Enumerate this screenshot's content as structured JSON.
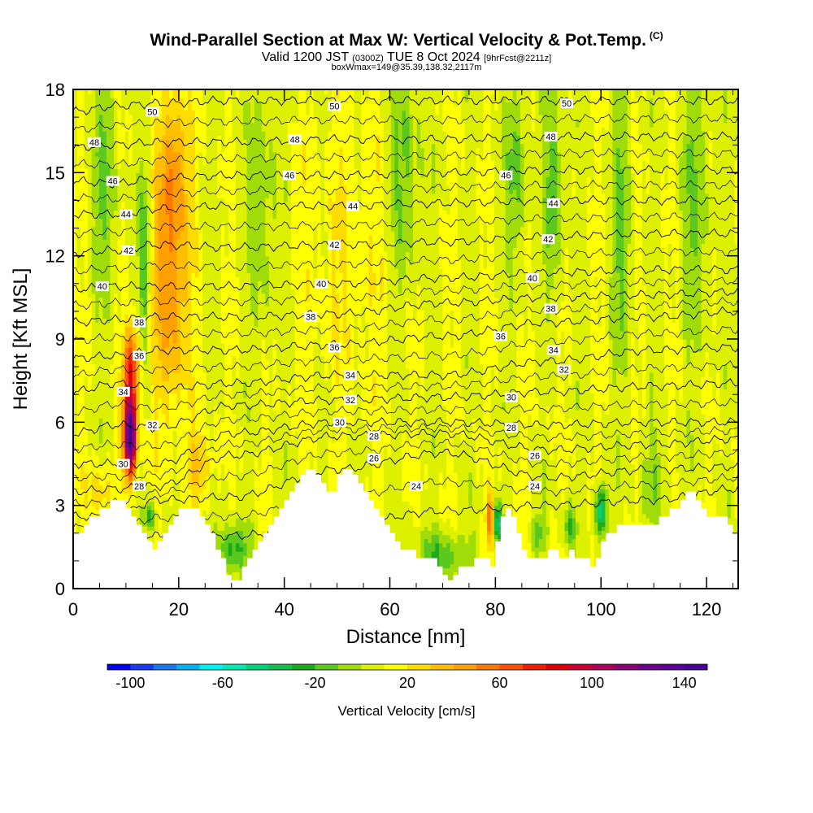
{
  "title": {
    "main": "Wind-Parallel Section at Max W: Vertical Velocity & Pot.Temp.",
    "copyright": "(C)",
    "valid_prefix": "Valid 1200 JST",
    "valid_utc": "(0300Z)",
    "valid_date": "TUE 8 Oct 2024",
    "forecast": "[9hrFcst@2211z]",
    "box": "boxWmax=149@35.39,138.32,2117m"
  },
  "chart_data": {
    "type": "heatmap",
    "xlabel": "Distance [nm]",
    "ylabel": "Height [Kft MSL]",
    "xlim": [
      0,
      126
    ],
    "ylim": [
      0,
      18
    ],
    "x_ticks": [
      0,
      20,
      40,
      60,
      80,
      100,
      120
    ],
    "y_ticks": [
      0,
      3,
      6,
      9,
      12,
      15,
      18
    ],
    "colorbar": {
      "label": "Vertical Velocity [cm/s]",
      "min": -110,
      "max": 150,
      "step": 10,
      "ticks": [
        -100,
        -60,
        -20,
        20,
        60,
        100,
        140
      ],
      "colors": [
        "#0000ee",
        "#1a3cf0",
        "#1c78f0",
        "#00b0f0",
        "#00f0f0",
        "#00e6b4",
        "#00d27a",
        "#14be4a",
        "#1aaa1a",
        "#5ac81e",
        "#a0dc0a",
        "#dcf000",
        "#ffff00",
        "#ffdc00",
        "#ffbe00",
        "#ffa000",
        "#ff7800",
        "#ff5000",
        "#f01e00",
        "#dc0000",
        "#c80032",
        "#aa005a",
        "#8c0078",
        "#6e0090",
        "#5a0096",
        "#460096"
      ]
    },
    "terrain_heights_kft": [
      [
        0,
        2
      ],
      [
        1,
        2
      ],
      [
        2,
        2.3
      ],
      [
        3,
        2.6
      ],
      [
        4,
        2.6
      ],
      [
        5,
        2.9
      ],
      [
        6,
        2.9
      ],
      [
        7,
        3.2
      ],
      [
        8,
        3.2
      ],
      [
        9,
        3.2
      ],
      [
        10,
        2.9
      ],
      [
        11,
        2.6
      ],
      [
        12,
        2.3
      ],
      [
        13,
        2
      ],
      [
        14,
        1.7
      ],
      [
        15,
        1.4
      ],
      [
        16,
        1.7
      ],
      [
        17,
        2
      ],
      [
        18,
        2.3
      ],
      [
        19,
        2.6
      ],
      [
        20,
        2.9
      ],
      [
        21,
        2.9
      ],
      [
        22,
        2.9
      ],
      [
        23,
        2.9
      ],
      [
        24,
        2.6
      ],
      [
        25,
        2.3
      ],
      [
        26,
        2
      ],
      [
        27,
        1.4
      ],
      [
        28,
        1.1
      ],
      [
        29,
        0.5
      ],
      [
        30,
        0.3
      ],
      [
        31,
        0.3
      ],
      [
        32,
        0.8
      ],
      [
        33,
        1.1
      ],
      [
        34,
        1.4
      ],
      [
        35,
        1.7
      ],
      [
        36,
        2
      ],
      [
        37,
        2.3
      ],
      [
        38,
        2.6
      ],
      [
        39,
        2.9
      ],
      [
        40,
        3.2
      ],
      [
        41,
        3.5
      ],
      [
        42,
        3.8
      ],
      [
        43,
        4.1
      ],
      [
        44,
        4.3
      ],
      [
        45,
        4.3
      ],
      [
        46,
        4.1
      ],
      [
        47,
        3.8
      ],
      [
        48,
        3.5
      ],
      [
        49,
        3.5
      ],
      [
        50,
        4.1
      ],
      [
        51,
        4.3
      ],
      [
        52,
        4.3
      ],
      [
        53,
        4.1
      ],
      [
        54,
        3.8
      ],
      [
        55,
        3.5
      ],
      [
        56,
        3.2
      ],
      [
        57,
        2.9
      ],
      [
        58,
        2.6
      ],
      [
        59,
        2.3
      ],
      [
        60,
        2
      ],
      [
        61,
        1.7
      ],
      [
        62,
        1.4
      ],
      [
        63,
        1.4
      ],
      [
        64,
        1.4
      ],
      [
        65,
        1.1
      ],
      [
        66,
        1.1
      ],
      [
        67,
        1.1
      ],
      [
        68,
        1.1
      ],
      [
        69,
        0.8
      ],
      [
        70,
        0.5
      ],
      [
        71,
        0.3
      ],
      [
        72,
        0.5
      ],
      [
        73,
        0.8
      ],
      [
        74,
        0.8
      ],
      [
        75,
        0.8
      ],
      [
        76,
        1.1
      ],
      [
        77,
        1.1
      ],
      [
        78,
        1.1
      ],
      [
        79,
        0.8
      ],
      [
        80,
        1.7
      ],
      [
        81,
        2.6
      ],
      [
        82,
        2.9
      ],
      [
        83,
        2.6
      ],
      [
        84,
        2
      ],
      [
        85,
        1.4
      ],
      [
        86,
        1.1
      ],
      [
        87,
        1.1
      ],
      [
        88,
        1.1
      ],
      [
        89,
        1.1
      ],
      [
        90,
        1.4
      ],
      [
        91,
        1.4
      ],
      [
        92,
        1.1
      ],
      [
        93,
        1.1
      ],
      [
        94,
        1.4
      ],
      [
        95,
        1.1
      ],
      [
        96,
        1.1
      ],
      [
        97,
        1.1
      ],
      [
        98,
        0.8
      ],
      [
        99,
        1.1
      ],
      [
        100,
        1.7
      ],
      [
        101,
        2
      ],
      [
        102,
        2
      ],
      [
        103,
        2.3
      ],
      [
        104,
        2.3
      ],
      [
        105,
        2.3
      ],
      [
        106,
        2.3
      ],
      [
        107,
        2.3
      ],
      [
        108,
        2.3
      ],
      [
        109,
        2.3
      ],
      [
        110,
        2.3
      ],
      [
        111,
        2.6
      ],
      [
        112,
        2.6
      ],
      [
        113,
        2.9
      ],
      [
        114,
        2.9
      ],
      [
        115,
        3.2
      ],
      [
        116,
        3.5
      ],
      [
        117,
        3.5
      ],
      [
        118,
        3.2
      ],
      [
        119,
        2.9
      ],
      [
        120,
        2.6
      ],
      [
        121,
        2.6
      ],
      [
        122,
        2.6
      ],
      [
        123,
        2.6
      ],
      [
        124,
        2.3
      ],
      [
        125,
        2
      ],
      [
        126,
        2
      ]
    ],
    "updraft_cores": [
      {
        "x": 10.8,
        "y": 5.5,
        "sx": 1.2,
        "sy": 1.4,
        "w": 145
      },
      {
        "x": 11.0,
        "y": 8.0,
        "sx": 1.4,
        "sy": 1.4,
        "w": 70
      },
      {
        "x": 18.5,
        "y": 11.0,
        "sx": 3.2,
        "sy": 4.5,
        "w": 42
      },
      {
        "x": 19.0,
        "y": 15.5,
        "sx": 2.5,
        "sy": 2.5,
        "w": 28
      },
      {
        "x": 24.0,
        "y": 4.5,
        "sx": 2.5,
        "sy": 1.2,
        "w": 25
      },
      {
        "x": 79.0,
        "y": 2.5,
        "sx": 0.8,
        "sy": 0.9,
        "w": 50
      },
      {
        "x": 5.0,
        "y": 3.5,
        "sx": 2.5,
        "sy": 1.0,
        "w": 18
      },
      {
        "x": 52.0,
        "y": 12.0,
        "sx": 8.0,
        "sy": 5.0,
        "w": 10
      }
    ],
    "downdraft_cores": [
      {
        "x": 14.5,
        "y": 2.6,
        "sx": 0.9,
        "sy": 0.5,
        "w": -40
      },
      {
        "x": 13.5,
        "y": 12.0,
        "sx": 1.0,
        "sy": 3.5,
        "w": -30
      },
      {
        "x": 30.0,
        "y": 1.4,
        "sx": 3.0,
        "sy": 0.9,
        "w": -35
      },
      {
        "x": 80.5,
        "y": 2.4,
        "sx": 0.8,
        "sy": 0.7,
        "w": -55
      },
      {
        "x": 100.0,
        "y": 2.8,
        "sx": 1.0,
        "sy": 0.9,
        "w": -65
      },
      {
        "x": 94.0,
        "y": 2.2,
        "sx": 1.2,
        "sy": 0.8,
        "w": -30
      },
      {
        "x": 88.0,
        "y": 2.0,
        "sx": 1.5,
        "sy": 0.7,
        "w": -25
      },
      {
        "x": 70.0,
        "y": 1.2,
        "sx": 5.0,
        "sy": 0.9,
        "w": -28
      },
      {
        "x": 6.0,
        "y": 15.0,
        "sx": 2.5,
        "sy": 4.0,
        "w": -20
      },
      {
        "x": 36.0,
        "y": 14.0,
        "sx": 2.5,
        "sy": 5.0,
        "w": -18
      },
      {
        "x": 63.0,
        "y": 15.0,
        "sx": 3.0,
        "sy": 4.0,
        "w": -22
      },
      {
        "x": 84.0,
        "y": 15.0,
        "sx": 2.0,
        "sy": 3.5,
        "w": -22
      },
      {
        "x": 91.0,
        "y": 14.5,
        "sx": 1.8,
        "sy": 4.0,
        "w": -25
      },
      {
        "x": 104.0,
        "y": 13.0,
        "sx": 1.8,
        "sy": 5.0,
        "w": -22
      },
      {
        "x": 118.0,
        "y": 14.0,
        "sx": 3.0,
        "sy": 5.0,
        "w": -18
      },
      {
        "x": 110.0,
        "y": 4.0,
        "sx": 3.0,
        "sy": 1.5,
        "w": -15
      }
    ],
    "isentropes": [
      {
        "value": 24,
        "kft": [
          1.8,
          1.8,
          1.9,
          1.9,
          2.3,
          2.8,
          3.0,
          3.2,
          3.6
        ]
      },
      {
        "value": 26,
        "kft": [
          2.6,
          2.6,
          3.2,
          3.3,
          4.3,
          4.9,
          4.0,
          4.3,
          4.4
        ]
      },
      {
        "value": 28,
        "kft": [
          3.5,
          3.6,
          3.7,
          4.8,
          5.5,
          5.6,
          5.0,
          5.2,
          5.4
        ]
      },
      {
        "value": 30,
        "kft": [
          4.5,
          4.5,
          4.5,
          5.6,
          6.0,
          6.0,
          5.9,
          6.0,
          6.0
        ]
      },
      {
        "value": 32,
        "kft": [
          5.6,
          5.9,
          5.8,
          6.6,
          6.8,
          6.9,
          7.1,
          7.3,
          7.4
        ]
      },
      {
        "value": 34,
        "kft": [
          7.1,
          7.4,
          7.2,
          7.4,
          7.7,
          7.7,
          8.2,
          8.6,
          8.7
        ]
      },
      {
        "value": 36,
        "kft": [
          8.3,
          8.4,
          8.6,
          8.6,
          8.8,
          9.1,
          9.6,
          9.8,
          10.0
        ]
      },
      {
        "value": 38,
        "kft": [
          9.6,
          9.7,
          9.8,
          9.8,
          9.9,
          10.3,
          10.5,
          10.6,
          10.7
        ]
      },
      {
        "value": 40,
        "kft": [
          10.8,
          10.9,
          10.9,
          10.9,
          11.0,
          11.2,
          11.4,
          11.5,
          11.5
        ]
      },
      {
        "value": 42,
        "kft": [
          12.1,
          12.2,
          12.4,
          12.3,
          12.4,
          12.5,
          12.7,
          12.8,
          12.8
        ]
      },
      {
        "value": 44,
        "kft": [
          13.5,
          13.5,
          13.7,
          13.8,
          13.8,
          13.9,
          14.0,
          14.0,
          14.0
        ]
      },
      {
        "value": 46,
        "kft": [
          14.7,
          14.6,
          14.8,
          14.9,
          14.9,
          15.0,
          15.1,
          15.1,
          15.1
        ]
      },
      {
        "value": 48,
        "kft": [
          15.9,
          16.0,
          16.1,
          16.1,
          16.2,
          16.2,
          16.3,
          16.3,
          16.3
        ]
      },
      {
        "value": 50,
        "kft": [
          17.2,
          17.4,
          17.5,
          17.6,
          17.6,
          17.6,
          17.6,
          17.6,
          17.6
        ]
      }
    ],
    "isentrope_x_nodes_nm": [
      0,
      8,
      16,
      30,
      50,
      70,
      90,
      110,
      126
    ],
    "contour_labels": [
      {
        "text": "50",
        "x": 15,
        "y": 17.2
      },
      {
        "text": "50",
        "x": 49.5,
        "y": 17.4
      },
      {
        "text": "50",
        "x": 93.5,
        "y": 17.5
      },
      {
        "text": "48",
        "x": 4,
        "y": 16.1
      },
      {
        "text": "48",
        "x": 42,
        "y": 16.2
      },
      {
        "text": "48",
        "x": 90.5,
        "y": 16.3
      },
      {
        "text": "46",
        "x": 7.5,
        "y": 14.7
      },
      {
        "text": "46",
        "x": 41,
        "y": 14.9
      },
      {
        "text": "46",
        "x": 82,
        "y": 14.9
      },
      {
        "text": "44",
        "x": 10,
        "y": 13.5
      },
      {
        "text": "44",
        "x": 53,
        "y": 13.8
      },
      {
        "text": "44",
        "x": 91,
        "y": 13.9
      },
      {
        "text": "42",
        "x": 10.5,
        "y": 12.2
      },
      {
        "text": "42",
        "x": 49.5,
        "y": 12.4
      },
      {
        "text": "42",
        "x": 90,
        "y": 12.6
      },
      {
        "text": "40",
        "x": 5.5,
        "y": 10.9
      },
      {
        "text": "40",
        "x": 47,
        "y": 11.0
      },
      {
        "text": "40",
        "x": 87,
        "y": 11.2
      },
      {
        "text": "38",
        "x": 12.5,
        "y": 9.6
      },
      {
        "text": "38",
        "x": 45,
        "y": 9.8
      },
      {
        "text": "38",
        "x": 90.5,
        "y": 10.1
      },
      {
        "text": "36",
        "x": 12.5,
        "y": 8.4
      },
      {
        "text": "36",
        "x": 49.5,
        "y": 8.7
      },
      {
        "text": "36",
        "x": 81,
        "y": 9.1
      },
      {
        "text": "34",
        "x": 9.5,
        "y": 7.1
      },
      {
        "text": "34",
        "x": 52.5,
        "y": 7.7
      },
      {
        "text": "34",
        "x": 91,
        "y": 8.6
      },
      {
        "text": "32",
        "x": 15,
        "y": 5.9
      },
      {
        "text": "32",
        "x": 52.5,
        "y": 6.8
      },
      {
        "text": "32",
        "x": 93,
        "y": 7.9
      },
      {
        "text": "30",
        "x": 9.5,
        "y": 4.5
      },
      {
        "text": "30",
        "x": 50.5,
        "y": 6.0
      },
      {
        "text": "30",
        "x": 83,
        "y": 6.9
      },
      {
        "text": "28",
        "x": 12.5,
        "y": 3.7
      },
      {
        "text": "28",
        "x": 57,
        "y": 5.5
      },
      {
        "text": "28",
        "x": 83,
        "y": 5.8
      },
      {
        "text": "26",
        "x": 57,
        "y": 4.7
      },
      {
        "text": "26",
        "x": 87.5,
        "y": 4.8
      },
      {
        "text": "24",
        "x": 65,
        "y": 3.7
      },
      {
        "text": "24",
        "x": 87.5,
        "y": 3.7
      }
    ]
  }
}
